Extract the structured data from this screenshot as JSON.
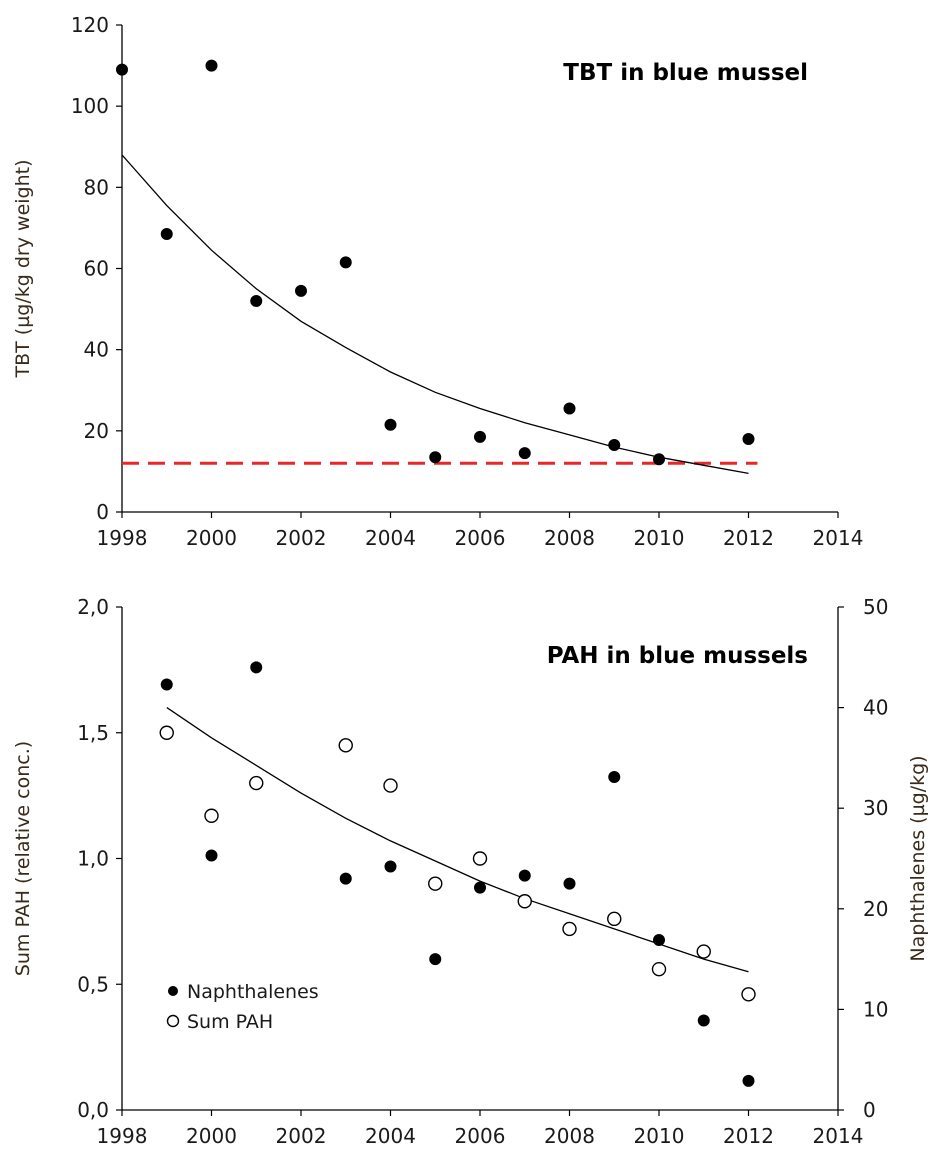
{
  "chart_data": [
    {
      "type": "scatter",
      "title": "TBT in blue mussel",
      "xlabel": "",
      "ylabel": "TBT (µg/kg dry weight)",
      "xlim": [
        1998,
        2014
      ],
      "ylim": [
        0,
        120
      ],
      "xticks": [
        1998,
        2000,
        2002,
        2004,
        2006,
        2008,
        2010,
        2012,
        2014
      ],
      "yticks": [
        0,
        20,
        40,
        60,
        80,
        100,
        120
      ],
      "xtick_labels": [
        "1998",
        "2000",
        "2002",
        "2004",
        "2006",
        "2008",
        "2010",
        "2012",
        "2014"
      ],
      "ytick_labels": [
        "0",
        "20",
        "40",
        "60",
        "80",
        "100",
        "120"
      ],
      "grid": false,
      "series": [
        {
          "marker": "filled-circle",
          "color": "#000000",
          "x": [
            1998,
            1999,
            2000,
            2001,
            2002,
            2003,
            2004,
            2005,
            2006,
            2007,
            2008,
            2009,
            2010,
            2012
          ],
          "y": [
            109,
            68.5,
            110,
            52,
            54.5,
            61.5,
            21.5,
            13.5,
            18.5,
            14.5,
            25.5,
            16.5,
            13,
            18
          ]
        }
      ],
      "trend_line": {
        "color": "#000000",
        "x": [
          1998,
          1999,
          2000,
          2001,
          2002,
          2003,
          2004,
          2005,
          2006,
          2007,
          2008,
          2009,
          2010,
          2011,
          2012
        ],
        "y": [
          88,
          75.5,
          64.5,
          55,
          47,
          40.5,
          34.5,
          29.5,
          25.5,
          22,
          19,
          16,
          13.5,
          11.5,
          9.5
        ]
      },
      "reference_line": {
        "y": 12,
        "color": "#e8262b",
        "style": "dashed",
        "x_range": [
          1998,
          2012.2
        ]
      }
    },
    {
      "type": "scatter",
      "title": "PAH in blue mussels",
      "xlabel": "",
      "ylabel": "Sum PAH (relative conc.)",
      "ylabel_right": "Naphthalenes (µg/kg)",
      "xlim": [
        1998,
        2014
      ],
      "ylim": [
        0,
        2
      ],
      "ylim_right": [
        0,
        50
      ],
      "xticks": [
        1998,
        2000,
        2002,
        2004,
        2006,
        2008,
        2010,
        2012,
        2014
      ],
      "yticks": [
        0,
        0.5,
        1,
        1.5,
        2
      ],
      "yticks_right": [
        0,
        10,
        20,
        30,
        40,
        50
      ],
      "xtick_labels": [
        "1998",
        "2000",
        "2002",
        "2004",
        "2006",
        "2008",
        "2010",
        "2012",
        "2014"
      ],
      "ytick_labels": [
        "0,0",
        "0,5",
        "1,0",
        "1,5",
        "2,0"
      ],
      "ytick_labels_right": [
        "0",
        "10",
        "20",
        "30",
        "40",
        "50"
      ],
      "grid": false,
      "legend": {
        "position": "bottom-left"
      },
      "series": [
        {
          "name": "Naphthalenes",
          "axis": "right",
          "marker": "filled-circle",
          "color": "#000000",
          "x": [
            1999,
            2000,
            2001,
            2003,
            2004,
            2005,
            2006,
            2007,
            2008,
            2009,
            2010,
            2011,
            2012
          ],
          "y": [
            42.3,
            25.3,
            44,
            23,
            24.2,
            15,
            22.1,
            23.3,
            22.5,
            33.1,
            16.9,
            8.9,
            2.9
          ]
        },
        {
          "name": "Sum PAH",
          "axis": "left",
          "marker": "open-circle",
          "color": "#000000",
          "x": [
            1999,
            2000,
            2001,
            2003,
            2004,
            2005,
            2006,
            2007,
            2008,
            2009,
            2010,
            2011,
            2012
          ],
          "y": [
            1.5,
            1.17,
            1.3,
            1.45,
            1.29,
            0.9,
            1.0,
            0.83,
            0.72,
            0.76,
            0.56,
            0.63,
            0.46
          ]
        }
      ],
      "trend_line": {
        "axis": "left",
        "color": "#000000",
        "x": [
          1999,
          2000,
          2001,
          2002,
          2003,
          2004,
          2005,
          2006,
          2007,
          2008,
          2009,
          2010,
          2011,
          2012
        ],
        "y": [
          1.6,
          1.48,
          1.37,
          1.26,
          1.16,
          1.07,
          0.99,
          0.91,
          0.84,
          0.78,
          0.72,
          0.66,
          0.6,
          0.55
        ]
      }
    }
  ]
}
